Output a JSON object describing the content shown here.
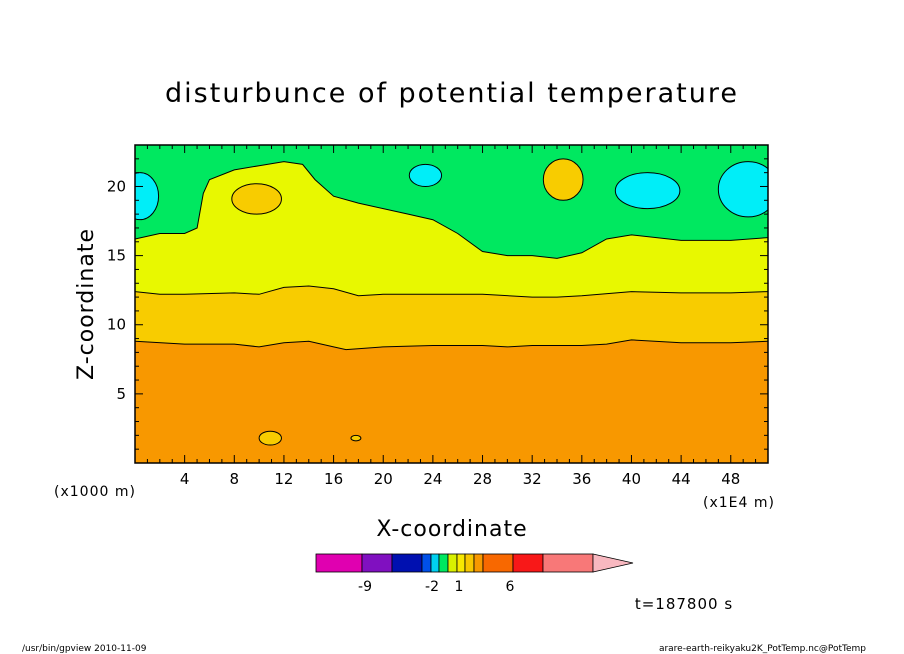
{
  "chart_data": {
    "type": "heatmap",
    "title": "disturbunce of potential temperature",
    "xlabel": "X-coordinate",
    "ylabel": "Z-coordinate",
    "x_unit_left": "(x1000 m)",
    "x_unit_right": "(x1E4 m)",
    "xlim": [
      0,
      51
    ],
    "ylim": [
      0,
      23
    ],
    "x_ticks": [
      4,
      8,
      12,
      16,
      20,
      24,
      28,
      32,
      36,
      40,
      44,
      48
    ],
    "y_ticks": [
      5,
      10,
      15,
      20
    ],
    "time_label": "t=187800 s",
    "colorbar": {
      "colors": [
        "#E000B0",
        "#8010C0",
        "#0010B0",
        "#0050E8",
        "#00D0F0",
        "#00E860",
        "#D8F000",
        "#F8E800",
        "#F8C800",
        "#F89800",
        "#F86800",
        "#F81818",
        "#F87878",
        "#F8B8C0"
      ],
      "tick_labels": [
        "-9",
        "-2",
        "1",
        "6"
      ]
    },
    "layers": [
      {
        "name": "deep-orange",
        "color": "#F89800"
      },
      {
        "name": "orange-yellow",
        "color": "#F8CC00"
      },
      {
        "name": "yellow",
        "color": "#E8F800"
      },
      {
        "name": "green",
        "color": "#00E860"
      },
      {
        "name": "cyan",
        "color": "#00EEF8"
      }
    ],
    "boundaries": {
      "orange_top": [
        [
          0,
          8.8
        ],
        [
          4,
          8.6
        ],
        [
          8,
          8.6
        ],
        [
          10,
          8.4
        ],
        [
          12,
          8.7
        ],
        [
          14,
          8.8
        ],
        [
          16,
          8.4
        ],
        [
          17,
          8.2
        ],
        [
          20,
          8.4
        ],
        [
          24,
          8.5
        ],
        [
          28,
          8.5
        ],
        [
          30,
          8.4
        ],
        [
          32,
          8.5
        ],
        [
          36,
          8.5
        ],
        [
          38,
          8.6
        ],
        [
          40,
          8.9
        ],
        [
          44,
          8.7
        ],
        [
          48,
          8.7
        ],
        [
          51,
          8.8
        ]
      ],
      "orangeyellow_top": [
        [
          0,
          12.4
        ],
        [
          2,
          12.2
        ],
        [
          4,
          12.2
        ],
        [
          8,
          12.3
        ],
        [
          10,
          12.2
        ],
        [
          12,
          12.7
        ],
        [
          14,
          12.8
        ],
        [
          16,
          12.6
        ],
        [
          18,
          12.1
        ],
        [
          20,
          12.2
        ],
        [
          24,
          12.2
        ],
        [
          28,
          12.2
        ],
        [
          32,
          12.0
        ],
        [
          34,
          12.0
        ],
        [
          36,
          12.1
        ],
        [
          40,
          12.4
        ],
        [
          44,
          12.3
        ],
        [
          48,
          12.3
        ],
        [
          51,
          12.4
        ]
      ],
      "yellow_top": [
        [
          0,
          16.2
        ],
        [
          2,
          16.6
        ],
        [
          4,
          16.6
        ],
        [
          5,
          17.0
        ],
        [
          5.5,
          19.5
        ],
        [
          6,
          20.5
        ],
        [
          8,
          21.2
        ],
        [
          10,
          21.5
        ],
        [
          12,
          21.8
        ],
        [
          13.5,
          21.6
        ],
        [
          14.5,
          20.5
        ],
        [
          16,
          19.3
        ],
        [
          18,
          18.8
        ],
        [
          20,
          18.4
        ],
        [
          22,
          18.0
        ],
        [
          24,
          17.6
        ],
        [
          26,
          16.6
        ],
        [
          28,
          15.3
        ],
        [
          30,
          15.0
        ],
        [
          32,
          15.0
        ],
        [
          34,
          14.8
        ],
        [
          36,
          15.2
        ],
        [
          38,
          16.2
        ],
        [
          40,
          16.5
        ],
        [
          44,
          16.1
        ],
        [
          48,
          16.1
        ],
        [
          51,
          16.3
        ]
      ]
    },
    "blobs": [
      {
        "color": "#F8CC00",
        "cx": 9.8,
        "cy": 19.1,
        "rx": 2.0,
        "ry": 1.1
      },
      {
        "color": "#F8CC00",
        "cx": 34.5,
        "cy": 20.5,
        "rx": 1.6,
        "ry": 1.5
      },
      {
        "color": "#00EEF8",
        "cx": 0.4,
        "cy": 19.3,
        "rx": 1.5,
        "ry": 1.7
      },
      {
        "color": "#00EEF8",
        "cx": 23.4,
        "cy": 20.8,
        "rx": 1.3,
        "ry": 0.8
      },
      {
        "color": "#00EEF8",
        "cx": 41.3,
        "cy": 19.7,
        "rx": 2.6,
        "ry": 1.3
      },
      {
        "color": "#00EEF8",
        "cx": 49.4,
        "cy": 19.8,
        "rx": 2.4,
        "ry": 2.0
      },
      {
        "color": "#F8CC00",
        "cx": 10.9,
        "cy": 1.8,
        "rx": 0.9,
        "ry": 0.5
      },
      {
        "color": "#F8CC00",
        "cx": 17.8,
        "cy": 1.8,
        "rx": 0.4,
        "ry": 0.2
      }
    ]
  },
  "footer": {
    "left": "/usr/bin/gpview  2010-11-09",
    "right": "arare-earth-reikyaku2K_PotTemp.nc@PotTemp"
  }
}
